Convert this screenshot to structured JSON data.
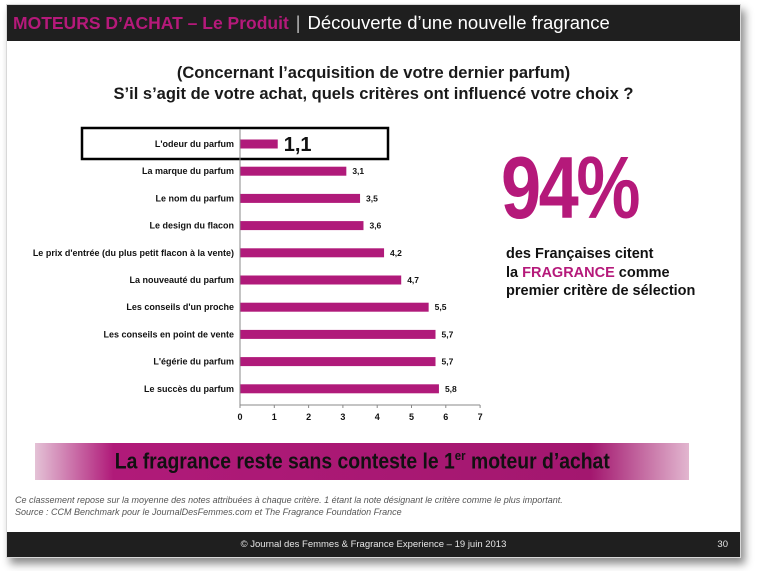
{
  "header": {
    "left_title": "MOTEURS D’ACHAT – Le Produit",
    "separator": "|",
    "right_title": "Découverte d’une nouvelle fragrance"
  },
  "question": {
    "line1": "(Concernant l’acquisition de votre dernier parfum)",
    "line2": "S’il s’agit de votre achat, quels critères ont influencé votre choix ?"
  },
  "chart_data": {
    "type": "bar",
    "orientation": "horizontal",
    "categories": [
      "L'odeur du parfum",
      "La marque du parfum",
      "Le nom du parfum",
      "Le design du flacon",
      "Le prix d'entrée (du plus petit flacon à la vente)",
      "La nouveauté du parfum",
      "Les conseils d'un proche",
      "Les conseils en point de vente",
      "L'égérie du parfum",
      "Le succès du parfum"
    ],
    "values": [
      1.1,
      3.1,
      3.5,
      3.6,
      4.2,
      4.7,
      5.5,
      5.7,
      5.7,
      5.8
    ],
    "value_labels": [
      "1,1",
      "3,1",
      "3,5",
      "3,6",
      "4,2",
      "4,7",
      "5,5",
      "5,7",
      "5,7",
      "5,8"
    ],
    "xlim": [
      0,
      7
    ],
    "xticks": [
      "0",
      "1",
      "2",
      "3",
      "4",
      "5",
      "6",
      "7"
    ],
    "bar_color": "#b01a7a",
    "highlighted_index": 0,
    "grid": false
  },
  "stat": {
    "value": "94%",
    "line1": "des Françaises citent",
    "line2_prefix": "la ",
    "line2_accent": "FRAGRANCE",
    "line2_suffix": " comme",
    "line3": "premier critère de sélection"
  },
  "banner": {
    "text_before": "La fragrance reste sans conteste le 1",
    "superscript": "er",
    "text_after": " moteur d’achat"
  },
  "footnote": {
    "line1": "Ce classement repose sur la moyenne des notes attribuées à chaque critère. 1 étant la note désignant le critère comme le plus important.",
    "line2": "Source : CCM Benchmark pour le JournalDesFemmes.com et The Fragrance Foundation France"
  },
  "footer": {
    "text": "© Journal des Femmes & Fragrance Experience – 19 juin 2013",
    "page": "30"
  },
  "colors": {
    "brand_magenta": "#b5197a",
    "header_bg": "#1f1f1f"
  }
}
